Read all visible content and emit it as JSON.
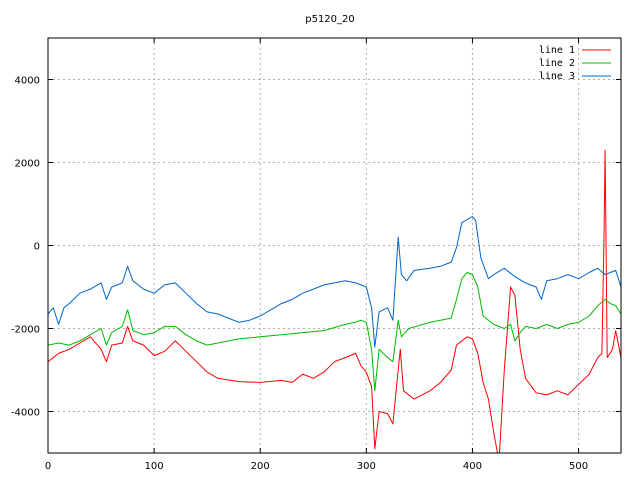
{
  "chart_data": {
    "type": "line",
    "title": "p5120_20",
    "xlabel": "",
    "ylabel": "",
    "xlim": [
      0,
      540
    ],
    "ylim": [
      -5000,
      5000
    ],
    "xticks": [
      0,
      100,
      200,
      300,
      400,
      500
    ],
    "yticks": [
      -4000,
      -2000,
      0,
      2000,
      4000
    ],
    "grid": true,
    "legend_position": "top-right",
    "series": [
      {
        "name": "line 1",
        "color": "#ff0000",
        "points": [
          [
            0,
            -2800
          ],
          [
            10,
            -2600
          ],
          [
            20,
            -2500
          ],
          [
            30,
            -2350
          ],
          [
            40,
            -2200
          ],
          [
            50,
            -2500
          ],
          [
            55,
            -2800
          ],
          [
            60,
            -2400
          ],
          [
            70,
            -2350
          ],
          [
            75,
            -1950
          ],
          [
            80,
            -2300
          ],
          [
            90,
            -2400
          ],
          [
            100,
            -2650
          ],
          [
            110,
            -2550
          ],
          [
            120,
            -2300
          ],
          [
            130,
            -2550
          ],
          [
            140,
            -2800
          ],
          [
            150,
            -3050
          ],
          [
            160,
            -3200
          ],
          [
            180,
            -3280
          ],
          [
            200,
            -3300
          ],
          [
            220,
            -3250
          ],
          [
            230,
            -3300
          ],
          [
            240,
            -3100
          ],
          [
            250,
            -3200
          ],
          [
            260,
            -3050
          ],
          [
            270,
            -2800
          ],
          [
            280,
            -2700
          ],
          [
            290,
            -2600
          ],
          [
            295,
            -2900
          ],
          [
            300,
            -3050
          ],
          [
            305,
            -3400
          ],
          [
            308,
            -4900
          ],
          [
            312,
            -4000
          ],
          [
            320,
            -4050
          ],
          [
            325,
            -4300
          ],
          [
            330,
            -3000
          ],
          [
            332,
            -2500
          ],
          [
            335,
            -3500
          ],
          [
            345,
            -3700
          ],
          [
            360,
            -3500
          ],
          [
            370,
            -3300
          ],
          [
            380,
            -3000
          ],
          [
            385,
            -2400
          ],
          [
            395,
            -2200
          ],
          [
            400,
            -2250
          ],
          [
            405,
            -2600
          ],
          [
            410,
            -3300
          ],
          [
            415,
            -3700
          ],
          [
            420,
            -4500
          ],
          [
            425,
            -5200
          ],
          [
            430,
            -3000
          ],
          [
            436,
            -1000
          ],
          [
            440,
            -1200
          ],
          [
            445,
            -2500
          ],
          [
            450,
            -3200
          ],
          [
            460,
            -3550
          ],
          [
            470,
            -3600
          ],
          [
            480,
            -3500
          ],
          [
            490,
            -3600
          ],
          [
            500,
            -3350
          ],
          [
            510,
            -3100
          ],
          [
            518,
            -2700
          ],
          [
            522,
            -2600
          ],
          [
            524,
            200
          ],
          [
            525,
            2300
          ],
          [
            527,
            -2700
          ],
          [
            532,
            -2500
          ],
          [
            535,
            -2050
          ],
          [
            540,
            -2700
          ]
        ]
      },
      {
        "name": "line 2",
        "color": "#00bb00",
        "points": [
          [
            0,
            -2400
          ],
          [
            10,
            -2350
          ],
          [
            20,
            -2400
          ],
          [
            30,
            -2300
          ],
          [
            40,
            -2150
          ],
          [
            50,
            -2000
          ],
          [
            55,
            -2400
          ],
          [
            60,
            -2100
          ],
          [
            70,
            -1950
          ],
          [
            75,
            -1550
          ],
          [
            80,
            -2050
          ],
          [
            90,
            -2150
          ],
          [
            100,
            -2100
          ],
          [
            110,
            -1950
          ],
          [
            120,
            -1950
          ],
          [
            130,
            -2150
          ],
          [
            140,
            -2300
          ],
          [
            150,
            -2400
          ],
          [
            160,
            -2350
          ],
          [
            180,
            -2250
          ],
          [
            200,
            -2200
          ],
          [
            220,
            -2150
          ],
          [
            240,
            -2100
          ],
          [
            260,
            -2050
          ],
          [
            280,
            -1900
          ],
          [
            290,
            -1850
          ],
          [
            295,
            -1800
          ],
          [
            300,
            -1850
          ],
          [
            305,
            -2500
          ],
          [
            308,
            -3500
          ],
          [
            312,
            -2500
          ],
          [
            320,
            -2700
          ],
          [
            325,
            -2800
          ],
          [
            330,
            -1800
          ],
          [
            333,
            -2200
          ],
          [
            340,
            -2000
          ],
          [
            360,
            -1850
          ],
          [
            370,
            -1800
          ],
          [
            380,
            -1750
          ],
          [
            385,
            -1300
          ],
          [
            390,
            -800
          ],
          [
            395,
            -650
          ],
          [
            400,
            -700
          ],
          [
            405,
            -1000
          ],
          [
            410,
            -1700
          ],
          [
            420,
            -1900
          ],
          [
            430,
            -2000
          ],
          [
            436,
            -1900
          ],
          [
            440,
            -2300
          ],
          [
            445,
            -2100
          ],
          [
            450,
            -1950
          ],
          [
            460,
            -2000
          ],
          [
            470,
            -1900
          ],
          [
            480,
            -2000
          ],
          [
            490,
            -1900
          ],
          [
            500,
            -1850
          ],
          [
            510,
            -1700
          ],
          [
            518,
            -1450
          ],
          [
            525,
            -1300
          ],
          [
            530,
            -1400
          ],
          [
            535,
            -1450
          ],
          [
            540,
            -1650
          ]
        ]
      },
      {
        "name": "line 3",
        "color": "#0066cc",
        "points": [
          [
            0,
            -1650
          ],
          [
            5,
            -1500
          ],
          [
            10,
            -1900
          ],
          [
            15,
            -1500
          ],
          [
            20,
            -1400
          ],
          [
            30,
            -1150
          ],
          [
            40,
            -1050
          ],
          [
            50,
            -900
          ],
          [
            55,
            -1300
          ],
          [
            60,
            -1000
          ],
          [
            70,
            -900
          ],
          [
            75,
            -500
          ],
          [
            80,
            -850
          ],
          [
            90,
            -1050
          ],
          [
            100,
            -1150
          ],
          [
            110,
            -950
          ],
          [
            120,
            -900
          ],
          [
            130,
            -1150
          ],
          [
            140,
            -1400
          ],
          [
            150,
            -1600
          ],
          [
            160,
            -1650
          ],
          [
            170,
            -1750
          ],
          [
            180,
            -1850
          ],
          [
            190,
            -1800
          ],
          [
            200,
            -1700
          ],
          [
            210,
            -1550
          ],
          [
            220,
            -1400
          ],
          [
            230,
            -1300
          ],
          [
            240,
            -1150
          ],
          [
            250,
            -1050
          ],
          [
            260,
            -950
          ],
          [
            270,
            -900
          ],
          [
            280,
            -850
          ],
          [
            290,
            -900
          ],
          [
            300,
            -1000
          ],
          [
            305,
            -1500
          ],
          [
            308,
            -2450
          ],
          [
            312,
            -1600
          ],
          [
            320,
            -1500
          ],
          [
            325,
            -1800
          ],
          [
            330,
            200
          ],
          [
            333,
            -700
          ],
          [
            338,
            -850
          ],
          [
            345,
            -600
          ],
          [
            360,
            -550
          ],
          [
            370,
            -500
          ],
          [
            380,
            -400
          ],
          [
            385,
            -50
          ],
          [
            390,
            550
          ],
          [
            400,
            700
          ],
          [
            403,
            600
          ],
          [
            408,
            -300
          ],
          [
            415,
            -800
          ],
          [
            420,
            -700
          ],
          [
            430,
            -550
          ],
          [
            440,
            -750
          ],
          [
            450,
            -900
          ],
          [
            460,
            -1000
          ],
          [
            465,
            -1300
          ],
          [
            470,
            -850
          ],
          [
            480,
            -800
          ],
          [
            490,
            -700
          ],
          [
            500,
            -800
          ],
          [
            510,
            -650
          ],
          [
            518,
            -550
          ],
          [
            525,
            -700
          ],
          [
            530,
            -650
          ],
          [
            535,
            -600
          ],
          [
            540,
            -1000
          ]
        ]
      }
    ]
  }
}
